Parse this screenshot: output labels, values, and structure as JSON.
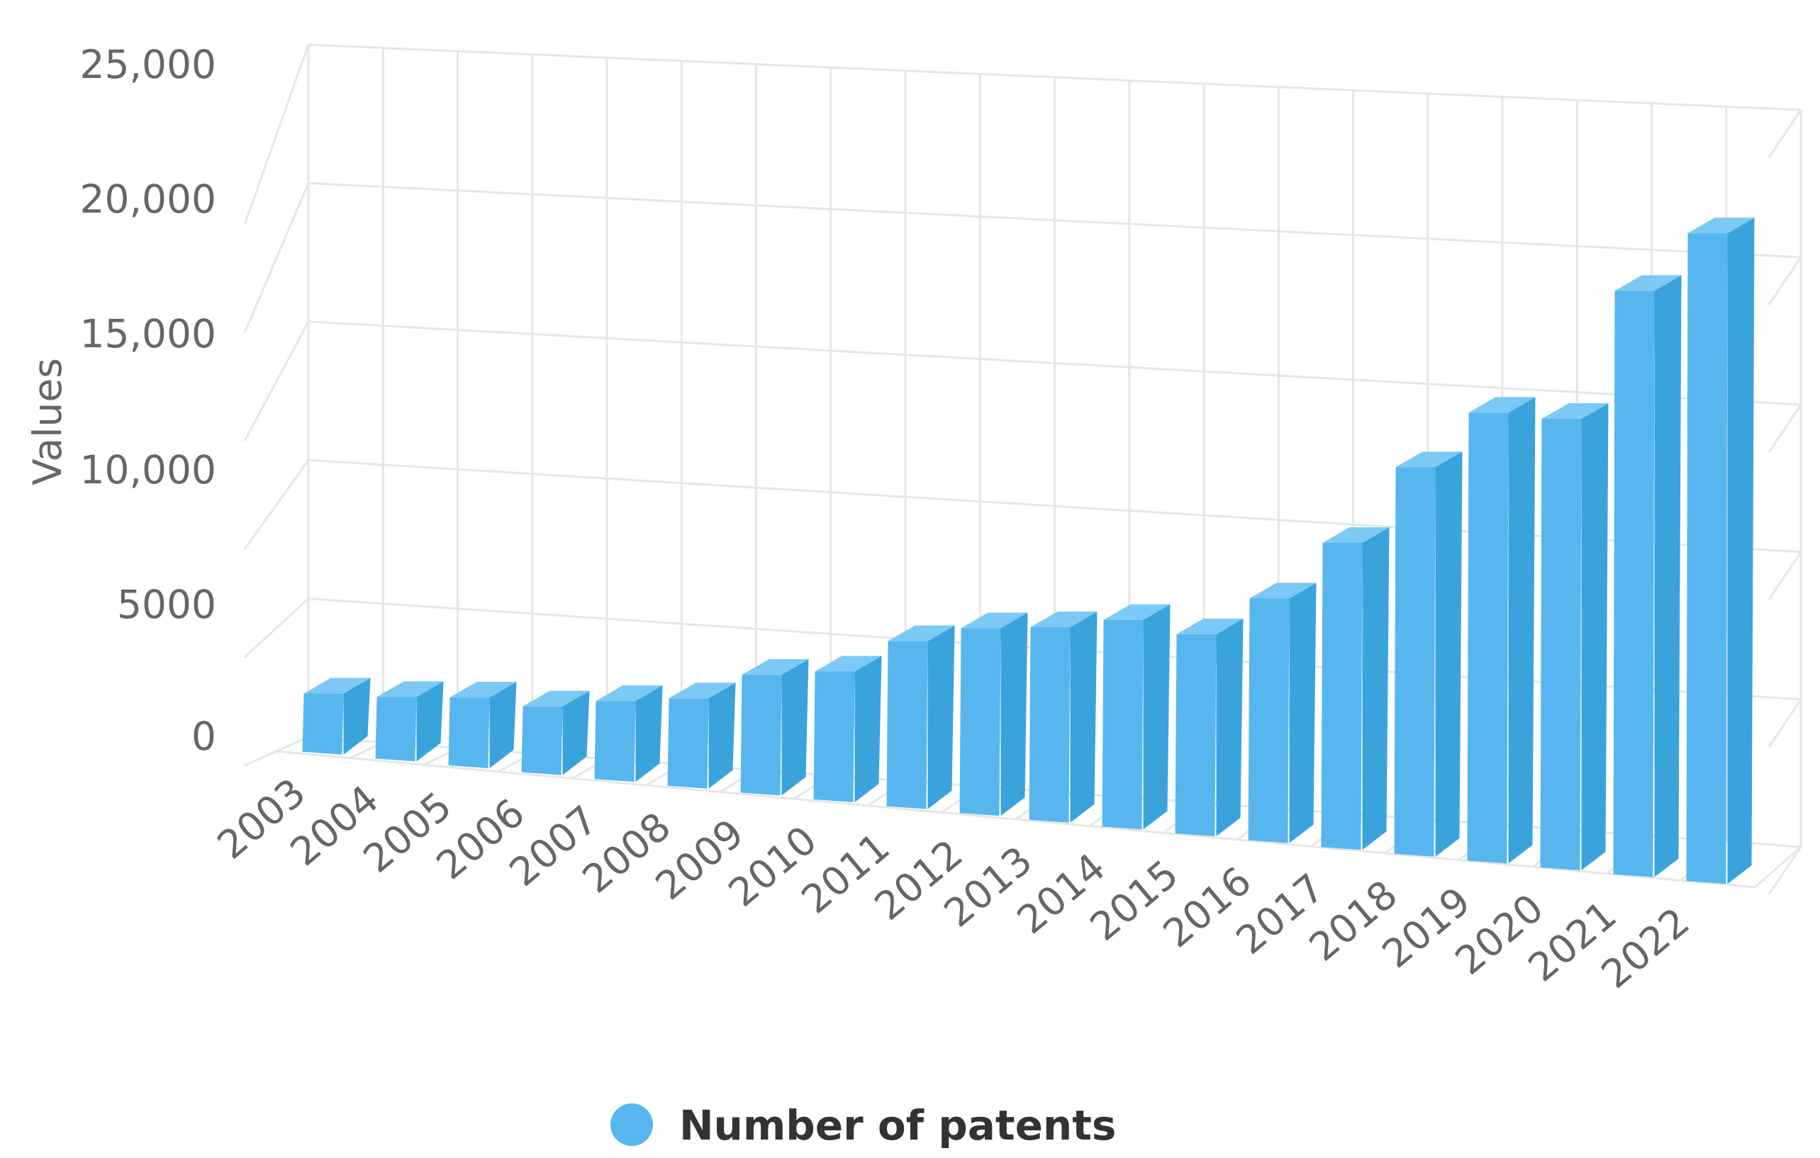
{
  "chart_data": {
    "type": "bar",
    "categories": [
      "2003",
      "2004",
      "2005",
      "2006",
      "2007",
      "2008",
      "2009",
      "2010",
      "2011",
      "2012",
      "2013",
      "2014",
      "2015",
      "2016",
      "2017",
      "2018",
      "2019",
      "2020",
      "2021",
      "2022"
    ],
    "series": [
      {
        "name": "Number of patents",
        "color": "#58b6ee",
        "values": [
          2200,
          2300,
          2500,
          2400,
          2800,
          3100,
          4100,
          4400,
          5600,
          6200,
          6400,
          6800,
          6500,
          7800,
          9700,
          12200,
          14000,
          13900,
          17900,
          19700
        ]
      }
    ],
    "title": "",
    "xlabel": "",
    "ylabel": "Values",
    "ylim": [
      0,
      25000
    ],
    "yticks": [
      "0",
      "5000",
      "10,000",
      "15,000",
      "20,000",
      "25,000"
    ],
    "grid": true,
    "legend_position": "bottom",
    "style": "3d"
  }
}
